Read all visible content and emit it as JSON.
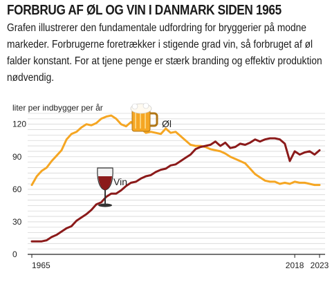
{
  "header": {
    "title": "FORBRUG AF ØL OG VIN I DANMARK SIDEN 1965",
    "subtitle": "Grafen illustrerer den fundamentale udfordring for bryggerier på modne markeder. Forbrugerne foretrækker i stigende grad vin, så forbruget af øl falder konstant. For at tjene penge er stærk branding og effektiv produktion nødvendig."
  },
  "icons": {
    "beer": "beer-mug-icon",
    "wine": "wine-glass-icon"
  },
  "colors": {
    "beer": "#f5a623",
    "wine": "#8b1a1a",
    "grid": "#d6d6d6",
    "axis": "#222222"
  },
  "chart_data": {
    "type": "line",
    "title": "FORBRUG AF ØL OG VIN I DANMARK SIDEN 1965",
    "ylabel": "liter per indbygger per år",
    "xlabel": "",
    "ylim": [
      0,
      130
    ],
    "xlim": [
      1965,
      2023
    ],
    "yticks": [
      0,
      30,
      60,
      90,
      120
    ],
    "xtick_labels": [
      "1965",
      "2018",
      "2023"
    ],
    "grid": true,
    "series": [
      {
        "name": "Øl",
        "x": [
          1965,
          1966,
          1967,
          1968,
          1969,
          1970,
          1971,
          1972,
          1973,
          1974,
          1975,
          1976,
          1977,
          1978,
          1979,
          1980,
          1981,
          1982,
          1983,
          1984,
          1985,
          1986,
          1987,
          1988,
          1989,
          1990,
          1991,
          1992,
          1993,
          1994,
          1995,
          1996,
          1997,
          1998,
          1999,
          2000,
          2001,
          2002,
          2003,
          2004,
          2005,
          2006,
          2007,
          2008,
          2009,
          2010,
          2011,
          2012,
          2013,
          2014,
          2015,
          2016,
          2017,
          2018,
          2019,
          2020,
          2021,
          2022,
          2023
        ],
        "values": [
          64,
          72,
          77,
          80,
          86,
          91,
          96,
          106,
          111,
          113,
          117,
          120,
          119,
          121,
          125,
          127,
          128,
          125,
          120,
          118,
          122,
          118,
          116,
          112,
          113,
          112,
          111,
          116,
          112,
          113,
          109,
          105,
          101,
          100,
          100,
          99,
          97,
          96,
          95,
          93,
          90,
          88,
          86,
          84,
          79,
          74,
          71,
          68,
          67,
          67,
          65,
          66,
          65,
          67,
          66,
          66,
          65,
          64,
          64
        ]
      },
      {
        "name": "Vin",
        "x": [
          1965,
          1966,
          1967,
          1968,
          1969,
          1970,
          1971,
          1972,
          1973,
          1974,
          1975,
          1976,
          1977,
          1978,
          1979,
          1980,
          1981,
          1982,
          1983,
          1984,
          1985,
          1986,
          1987,
          1988,
          1989,
          1990,
          1991,
          1992,
          1993,
          1994,
          1995,
          1996,
          1997,
          1998,
          1999,
          2000,
          2001,
          2002,
          2003,
          2004,
          2005,
          2006,
          2007,
          2008,
          2009,
          2010,
          2011,
          2012,
          2013,
          2014,
          2015,
          2016,
          2017,
          2018,
          2019,
          2020,
          2021,
          2022,
          2023
        ],
        "values": [
          12,
          12,
          12,
          13,
          16,
          18,
          21,
          24,
          26,
          31,
          34,
          37,
          41,
          46,
          48,
          53,
          56,
          56,
          59,
          63,
          66,
          67,
          70,
          72,
          73,
          76,
          78,
          79,
          82,
          83,
          86,
          89,
          92,
          97,
          99,
          100,
          101,
          104,
          100,
          103,
          98,
          99,
          102,
          101,
          103,
          106,
          104,
          106,
          107,
          107,
          106,
          102,
          86,
          95,
          92,
          94,
          95,
          92,
          96
        ]
      }
    ]
  }
}
